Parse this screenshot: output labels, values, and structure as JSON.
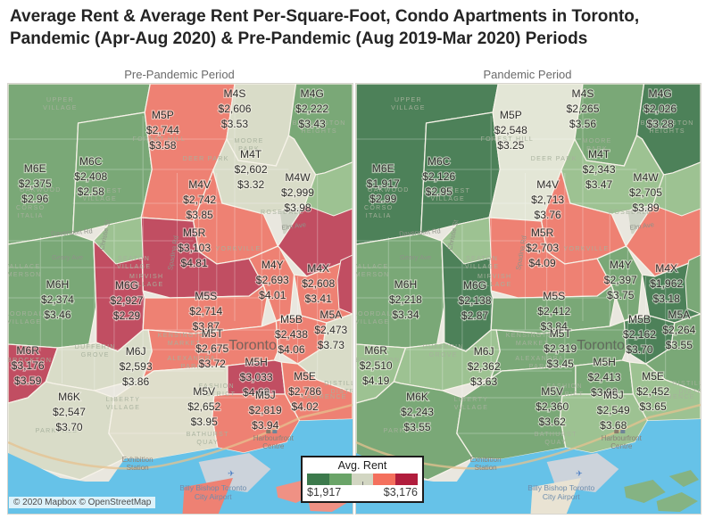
{
  "title": "Average Rent & Average Rent Per-Square-Foot, Condo Apartments in Toronto, Pandemic (Apr-Aug 2020) & Pre-Pandemic (Aug 2019-Mar 2020) Periods",
  "attribution": "© 2020 Mapbox © OpenStreetMap",
  "icons": {
    "plane": "✈"
  },
  "legend": {
    "title": "Avg. Rent",
    "min": "$1,917",
    "max": "$3,176",
    "colors": [
      "#3c7a4c",
      "#6aa468",
      "#d2d6c2",
      "#f4705d",
      "#b11d3d"
    ]
  },
  "basemap": {
    "labels": [
      "UPPER",
      "VILLAGE",
      "FOREST HILL",
      "OAKWOOD",
      "CORSO",
      "ITALIA",
      "HILLCREST",
      "VILLAGE",
      "SEATON",
      "VILLAGE",
      "MIRVISH",
      "VILLAGE",
      "YORKVILLE",
      "Davenport Rd",
      "Geary Ave",
      "Christie St",
      "Spadina Rd",
      "Elm Ave",
      "ROSEDALE",
      "MOORE",
      "PARK",
      "DEER PARK",
      "WALLACE",
      "EMERSON",
      "BLOORDALE",
      "VILLAGE",
      "DUFFERIN",
      "GROVE",
      "KENSINGTON",
      "MARKET",
      "ALEXANDRA",
      "PARK",
      "FASHION",
      "DISTRICT",
      "LIBERTY",
      "VILLAGE",
      "PARKDALE",
      "BATHURST",
      "QUAY",
      "Exhibition",
      "Station",
      "Harbourfront",
      "Centre",
      "Billy Bishop Toronto",
      "City Airport",
      "Toronto",
      "BROCKTON",
      "BENNINGTON",
      "HEIGHTS",
      "DISTILLERY",
      "DISTRICT",
      "LAWRENCE"
    ]
  },
  "panels": [
    {
      "title": "Pre-Pandemic Period",
      "regions": [
        {
          "code": "M6E",
          "rent": "$2,375",
          "psf": "$2.96",
          "color": "#7aa877"
        },
        {
          "code": "M6C",
          "rent": "$2,408",
          "psf": "$2.58",
          "color": "#7aa877"
        },
        {
          "code": "M5P",
          "rent": "$2,744",
          "psf": "$3.58",
          "color": "#ee8173"
        },
        {
          "code": "M4S",
          "rent": "$2,606",
          "psf": "$3.53",
          "color": "#d9dcc8"
        },
        {
          "code": "M4G",
          "rent": "$2,222",
          "psf": "$3.43",
          "color": "#7aa877"
        },
        {
          "code": "M4T",
          "rent": "$2,602",
          "psf": "$3.32",
          "color": "#d9dcc8"
        },
        {
          "code": "M4V",
          "rent": "$2,742",
          "psf": "$3.85",
          "color": "#ee8173"
        },
        {
          "code": "M4W",
          "rent": "$2,999",
          "psf": "$3.98",
          "color": "#c14e62"
        },
        {
          "code": "M5R",
          "rent": "$3,103",
          "psf": "$4.81",
          "color": "#c14e62"
        },
        {
          "code": "M6H",
          "rent": "$2,374",
          "psf": "$3.46",
          "color": "#7aa877"
        },
        {
          "code": "M6G",
          "rent": "$2,927",
          "psf": "$2.29",
          "color": "#c14e62"
        },
        {
          "code": "M5S",
          "rent": "$2,714",
          "psf": "$3.87",
          "color": "#ee8173"
        },
        {
          "code": "M4Y",
          "rent": "$2,693",
          "psf": "$4.01",
          "color": "#ee8173"
        },
        {
          "code": "M4X",
          "rent": "$2,608",
          "psf": "$3.41",
          "color": "#ee8173"
        },
        {
          "code": "M5B",
          "rent": "$2,438",
          "psf": "$4.06",
          "color": "#ee8173"
        },
        {
          "code": "M5A",
          "rent": "$2,473",
          "psf": "$3.73",
          "color": "#d9dcc8"
        },
        {
          "code": "M6R",
          "rent": "$3,176",
          "psf": "$3.59",
          "color": "#c14e62"
        },
        {
          "code": "M6J",
          "rent": "$2,593",
          "psf": "$3.86",
          "color": "#d9dcc8"
        },
        {
          "code": "M5T",
          "rent": "$2,675",
          "psf": "$3.72",
          "color": "#ee8173"
        },
        {
          "code": "M6K",
          "rent": "$2,547",
          "psf": "$3.70",
          "color": "#d9dcc8"
        },
        {
          "code": "M5V",
          "rent": "$2,652",
          "psf": "$3.95",
          "color": "#dfdecb"
        },
        {
          "code": "M5H",
          "rent": "$3,033",
          "psf": "$4.69",
          "color": "#c14e62"
        },
        {
          "code": "M5E",
          "rent": "$2,786",
          "psf": "$4.02",
          "color": "#ee8173"
        },
        {
          "code": "M5J",
          "rent": "$2,819",
          "psf": "$3.94",
          "color": "#ee8173"
        }
      ]
    },
    {
      "title": "Pandemic Period",
      "regions": [
        {
          "code": "M6E",
          "rent": "$1,917",
          "psf": "$2.99",
          "color": "#4d8159"
        },
        {
          "code": "M6C",
          "rent": "$2,126",
          "psf": "$2.95",
          "color": "#4d8159"
        },
        {
          "code": "M5P",
          "rent": "$2,548",
          "psf": "$3.25",
          "color": "#e3e6d6"
        },
        {
          "code": "M4S",
          "rent": "$2,265",
          "psf": "$3.56",
          "color": "#7aa877"
        },
        {
          "code": "M4G",
          "rent": "$2,026",
          "psf": "$3.28",
          "color": "#4d8159"
        },
        {
          "code": "M4T",
          "rent": "$2,343",
          "psf": "$3.47",
          "color": "#9dc292"
        },
        {
          "code": "M4V",
          "rent": "$2,713",
          "psf": "$3.76",
          "color": "#ee8173"
        },
        {
          "code": "M4W",
          "rent": "$2,705",
          "psf": "$3.89",
          "color": "#ee8173"
        },
        {
          "code": "M5R",
          "rent": "$2,703",
          "psf": "$4.09",
          "color": "#ee8173"
        },
        {
          "code": "M6H",
          "rent": "$2,218",
          "psf": "$3.34",
          "color": "#7aa877"
        },
        {
          "code": "M6G",
          "rent": "$2,138",
          "psf": "$2.87",
          "color": "#4d8159"
        },
        {
          "code": "M5S",
          "rent": "$2,412",
          "psf": "$3.84",
          "color": "#7aa877"
        },
        {
          "code": "M4Y",
          "rent": "$2,397",
          "psf": "$3.75",
          "color": "#7aa877"
        },
        {
          "code": "M4X",
          "rent": "$1,962",
          "psf": "$3.18",
          "color": "#4d8159"
        },
        {
          "code": "M5B",
          "rent": "$2,162",
          "psf": "$3.70",
          "color": "#4d8159"
        },
        {
          "code": "M5A",
          "rent": "$2,264",
          "psf": "$3.55",
          "color": "#7aa877"
        },
        {
          "code": "M6R",
          "rent": "$2,510",
          "psf": "$4.19",
          "color": "#9dc292"
        },
        {
          "code": "M6J",
          "rent": "$2,362",
          "psf": "$3.63",
          "color": "#9dc292"
        },
        {
          "code": "M5T",
          "rent": "$2,319",
          "psf": "$3.45",
          "color": "#7aa877"
        },
        {
          "code": "M6K",
          "rent": "$2,243",
          "psf": "$3.55",
          "color": "#7aa877"
        },
        {
          "code": "M5V",
          "rent": "$2,360",
          "psf": "$3.62",
          "color": "#7aa877"
        },
        {
          "code": "M5H",
          "rent": "$2,413",
          "psf": "$3.90",
          "color": "#7aa877"
        },
        {
          "code": "M5E",
          "rent": "$2,452",
          "psf": "$3.65",
          "color": "#9dc292"
        },
        {
          "code": "M5J",
          "rent": "$2,549",
          "psf": "$3.68",
          "color": "#9dc292"
        }
      ]
    }
  ]
}
